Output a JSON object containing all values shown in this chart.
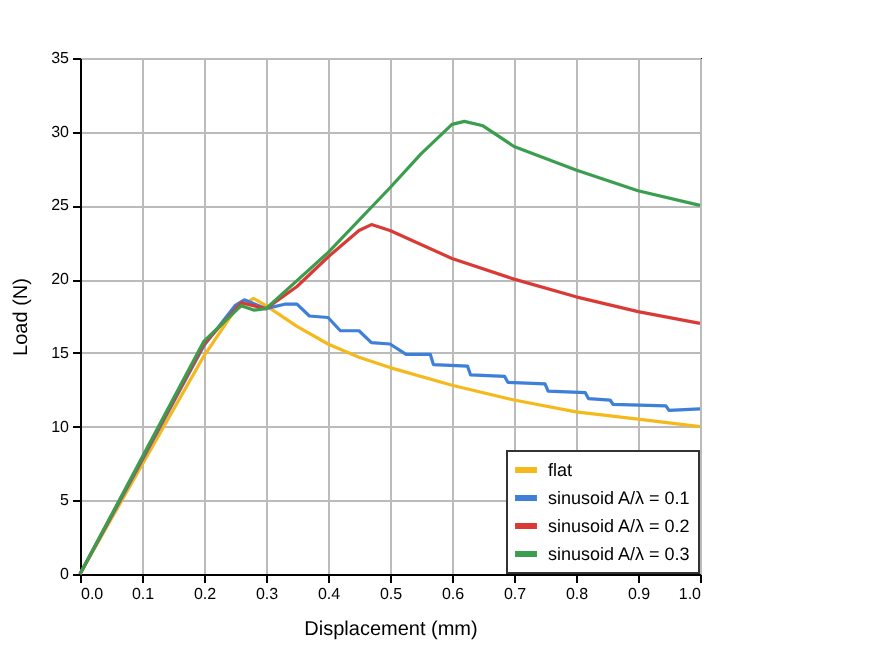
{
  "chart_data": {
    "type": "line",
    "xlabel": "Displacement (mm)",
    "ylabel": "Load (N)",
    "xlim": [
      0,
      1
    ],
    "ylim": [
      0,
      35
    ],
    "xticks": [
      {
        "value": 0,
        "label": "0.0"
      },
      0.1,
      0.2,
      0.3,
      0.4,
      0.5,
      0.6,
      0.7,
      0.8,
      0.9,
      {
        "value": 1,
        "label": "1.0"
      }
    ],
    "yticks": [
      0,
      5,
      10,
      15,
      20,
      25,
      30,
      35
    ],
    "grid": true,
    "legend": "bottom right",
    "line_style": "solid",
    "marker": "none",
    "series": [
      {
        "name": "flat",
        "color": "#f5b91c",
        "x": [
          0,
          0.1,
          0.2,
          0.25,
          0.28,
          0.3,
          0.35,
          0.4,
          0.45,
          0.5,
          0.6,
          0.7,
          0.8,
          0.9,
          1.0
        ],
        "values": [
          0,
          7.4,
          14.8,
          17.9,
          18.7,
          18.2,
          16.8,
          15.6,
          14.7,
          14.0,
          12.8,
          11.8,
          11.0,
          10.5,
          10.0
        ]
      },
      {
        "name": "sinusoid A/λ = 0.1",
        "color": "#3d7fd9",
        "x": [
          0,
          0.1,
          0.2,
          0.25,
          0.265,
          0.3,
          0.33,
          0.35,
          0.37,
          0.4,
          0.42,
          0.45,
          0.47,
          0.5,
          0.526,
          0.565,
          0.57,
          0.625,
          0.63,
          0.685,
          0.69,
          0.75,
          0.755,
          0.815,
          0.82,
          0.855,
          0.86,
          0.945,
          0.95,
          1.0
        ],
        "values": [
          0,
          7.7,
          15.5,
          18.2,
          18.6,
          18.0,
          18.3,
          18.3,
          17.5,
          17.4,
          16.5,
          16.5,
          15.7,
          15.6,
          14.9,
          14.9,
          14.2,
          14.1,
          13.5,
          13.4,
          13.0,
          12.9,
          12.4,
          12.3,
          11.9,
          11.8,
          11.5,
          11.4,
          11.1,
          11.2
        ]
      },
      {
        "name": "sinusoid A/λ = 0.2",
        "color": "#d93a35",
        "x": [
          0,
          0.1,
          0.2,
          0.26,
          0.3,
          0.35,
          0.4,
          0.45,
          0.47,
          0.5,
          0.6,
          0.7,
          0.8,
          0.9,
          1.0
        ],
        "values": [
          0,
          7.8,
          15.6,
          18.4,
          18.0,
          19.5,
          21.5,
          23.3,
          23.7,
          23.3,
          21.4,
          20.0,
          18.8,
          17.8,
          17.0
        ]
      },
      {
        "name": "sinusoid A/λ = 0.3",
        "color": "#3b9e4e",
        "x": [
          0,
          0.1,
          0.2,
          0.26,
          0.28,
          0.3,
          0.4,
          0.5,
          0.55,
          0.6,
          0.62,
          0.65,
          0.7,
          0.8,
          0.9,
          1.0
        ],
        "values": [
          0,
          7.9,
          15.8,
          18.2,
          17.9,
          18.0,
          21.8,
          26.2,
          28.5,
          30.5,
          30.7,
          30.4,
          29.0,
          27.4,
          26.0,
          25.0
        ]
      }
    ]
  }
}
